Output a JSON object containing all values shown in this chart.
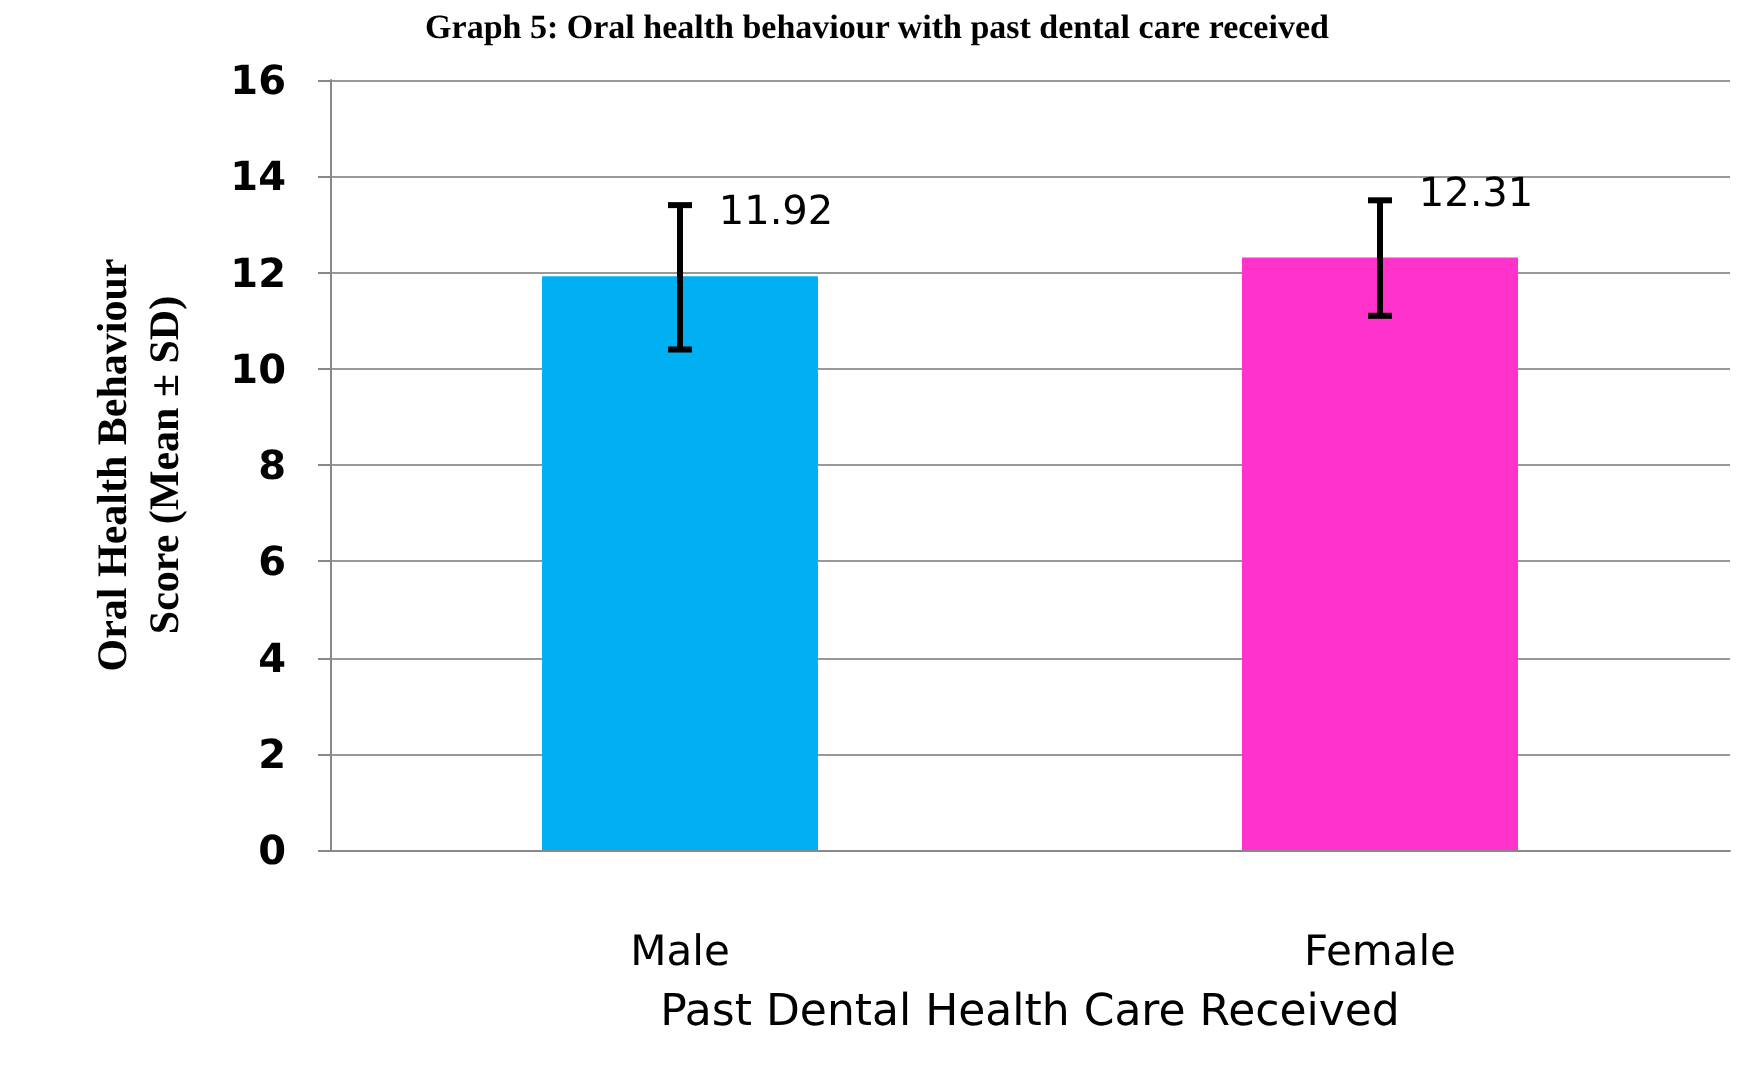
{
  "chart_data": {
    "type": "bar",
    "title": "Graph 5: Oral health behaviour with past dental care received",
    "xlabel": "Past Dental Health Care Received",
    "ylabel": "Oral Health Behaviour\nScore (Mean ± SD)",
    "categories": [
      "Male",
      "Female"
    ],
    "values": [
      11.92,
      12.31
    ],
    "colors": [
      "#00b0f0",
      "#ff33cc"
    ],
    "errors": [
      [
        10.4,
        13.4
      ],
      [
        11.1,
        13.5
      ]
    ],
    "value_labels": [
      "11.92",
      "12.31"
    ],
    "ylim": [
      0,
      16
    ],
    "yticks": [
      0,
      2,
      4,
      6,
      8,
      10,
      12,
      14,
      16
    ],
    "grid": "y"
  }
}
